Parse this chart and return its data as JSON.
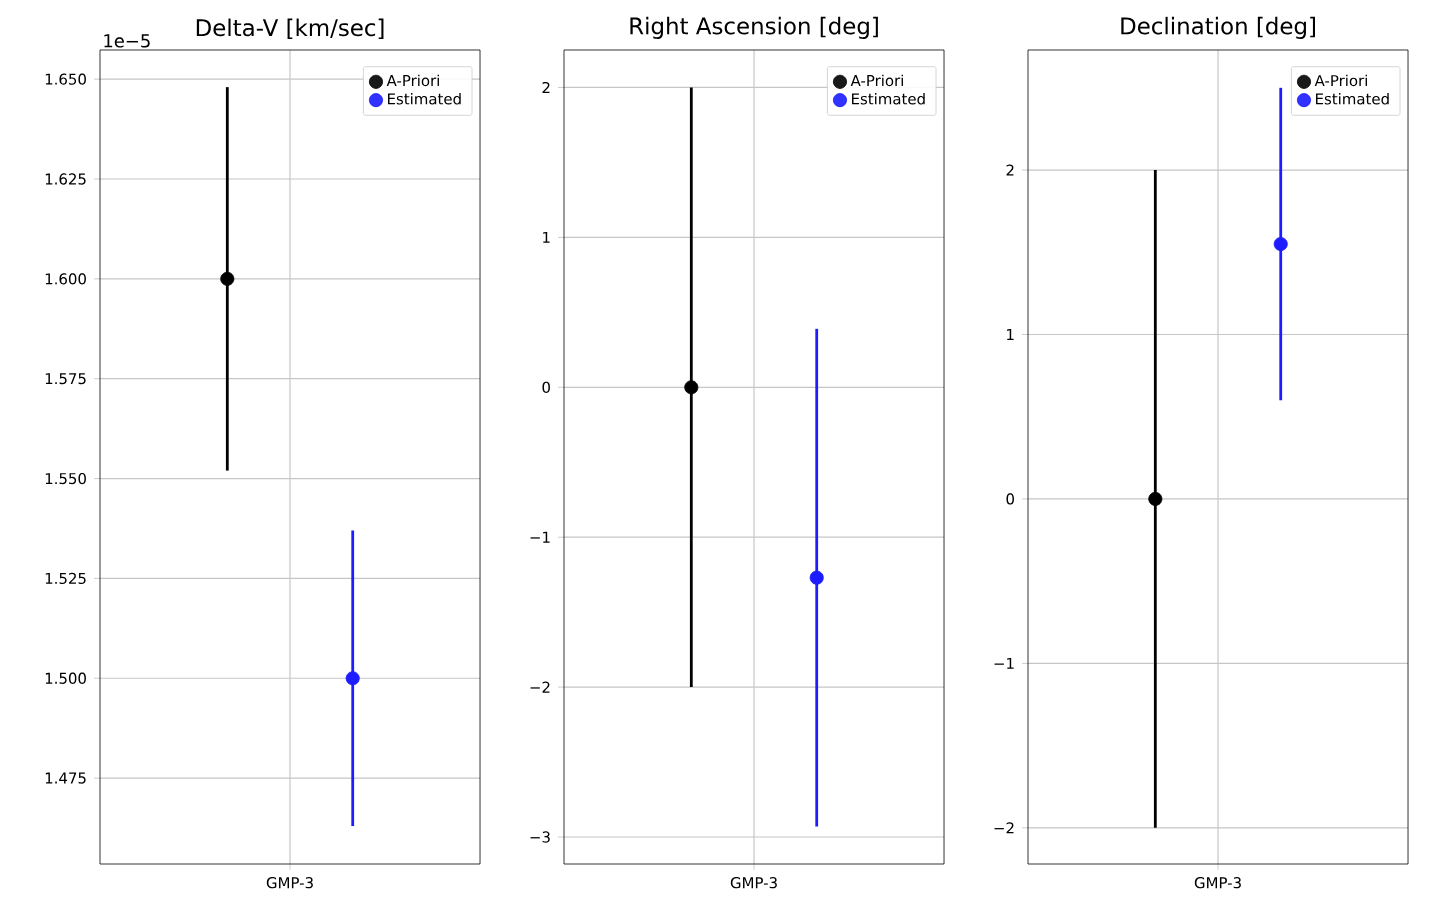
{
  "chart_data": [
    {
      "type": "scatter",
      "title": "Delta-V [km/sec]",
      "annotations": [
        "1e−5"
      ],
      "categories": [
        "GMP-3"
      ],
      "marker": "circle",
      "grid": true,
      "legend": "top right",
      "ylim": [
        1.4535,
        1.6573
      ],
      "yticks": [
        {
          "value": 1.475,
          "label": "1.475"
        },
        {
          "value": 1.5,
          "label": "1.500"
        },
        {
          "value": 1.525,
          "label": "1.525"
        },
        {
          "value": 1.55,
          "label": "1.550"
        },
        {
          "value": 1.575,
          "label": "1.575"
        },
        {
          "value": 1.6,
          "label": "1.600"
        },
        {
          "value": 1.625,
          "label": "1.625"
        },
        {
          "value": 1.65,
          "label": "1.650"
        }
      ],
      "series": [
        {
          "name": "A-Priori",
          "color": "#000000",
          "values": [
            1.6
          ],
          "errors": [
            0.048
          ]
        },
        {
          "name": "Estimated",
          "color": "#1c1cff",
          "values": [
            1.5
          ],
          "errors": [
            0.037
          ]
        }
      ]
    },
    {
      "type": "scatter",
      "title": "Right Ascension [deg]",
      "categories": [
        "GMP-3"
      ],
      "marker": "circle",
      "grid": true,
      "legend": "top right",
      "ylim": [
        -3.18,
        2.25
      ],
      "yticks": [
        {
          "value": -3,
          "label": "−3"
        },
        {
          "value": -2,
          "label": "−2"
        },
        {
          "value": -1,
          "label": "−1"
        },
        0,
        1,
        2
      ],
      "series": [
        {
          "name": "A-Priori",
          "color": "#000000",
          "values": [
            0
          ],
          "errors": [
            2
          ]
        },
        {
          "name": "Estimated",
          "color": "#1c1cff",
          "values": [
            -1.27
          ],
          "errors": [
            1.66
          ]
        }
      ]
    },
    {
      "type": "scatter",
      "title": "Declination [deg]",
      "categories": [
        "GMP-3"
      ],
      "marker": "circle",
      "grid": true,
      "legend": "top right",
      "ylim": [
        -2.22,
        2.73
      ],
      "yticks": [
        {
          "value": -2,
          "label": "−2"
        },
        {
          "value": -1,
          "label": "−1"
        },
        0,
        1,
        2
      ],
      "series": [
        {
          "name": "A-Priori",
          "color": "#000000",
          "values": [
            0
          ],
          "errors": [
            2
          ]
        },
        {
          "name": "Estimated",
          "color": "#1c1cff",
          "values": [
            1.55
          ],
          "errors": [
            0.95
          ]
        }
      ]
    }
  ]
}
